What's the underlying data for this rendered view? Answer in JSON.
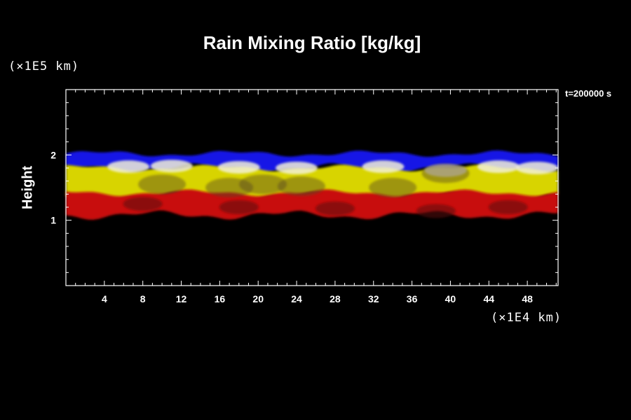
{
  "chart_data": {
    "type": "heatmap",
    "title": "Rain Mixing Ratio [kg/kg]",
    "ylabel": "Height",
    "y_unit": "(×1E5 km)",
    "x_unit": "(×1E4 km)",
    "time_label": "t=200000 s",
    "xlim": [
      0,
      51.2
    ],
    "ylim": [
      0,
      3.0
    ],
    "x_ticks": [
      "4",
      "8",
      "12",
      "16",
      "20",
      "24",
      "28",
      "32",
      "36",
      "40",
      "44",
      "48"
    ],
    "x_tick_values": [
      4,
      8,
      12,
      16,
      20,
      24,
      28,
      32,
      36,
      40,
      44,
      48
    ],
    "y_ticks": [
      "1",
      "2"
    ],
    "y_tick_values": [
      1,
      2
    ],
    "layers": [
      {
        "name": "blue",
        "color": "#1414e6",
        "top": 2.02,
        "bottom": 1.8
      },
      {
        "name": "yellow",
        "color": "#d8d400",
        "top": 1.8,
        "bottom": 1.36
      },
      {
        "name": "red",
        "color": "#c80f0f",
        "top": 1.42,
        "bottom": 1.08
      }
    ],
    "grid": false
  }
}
